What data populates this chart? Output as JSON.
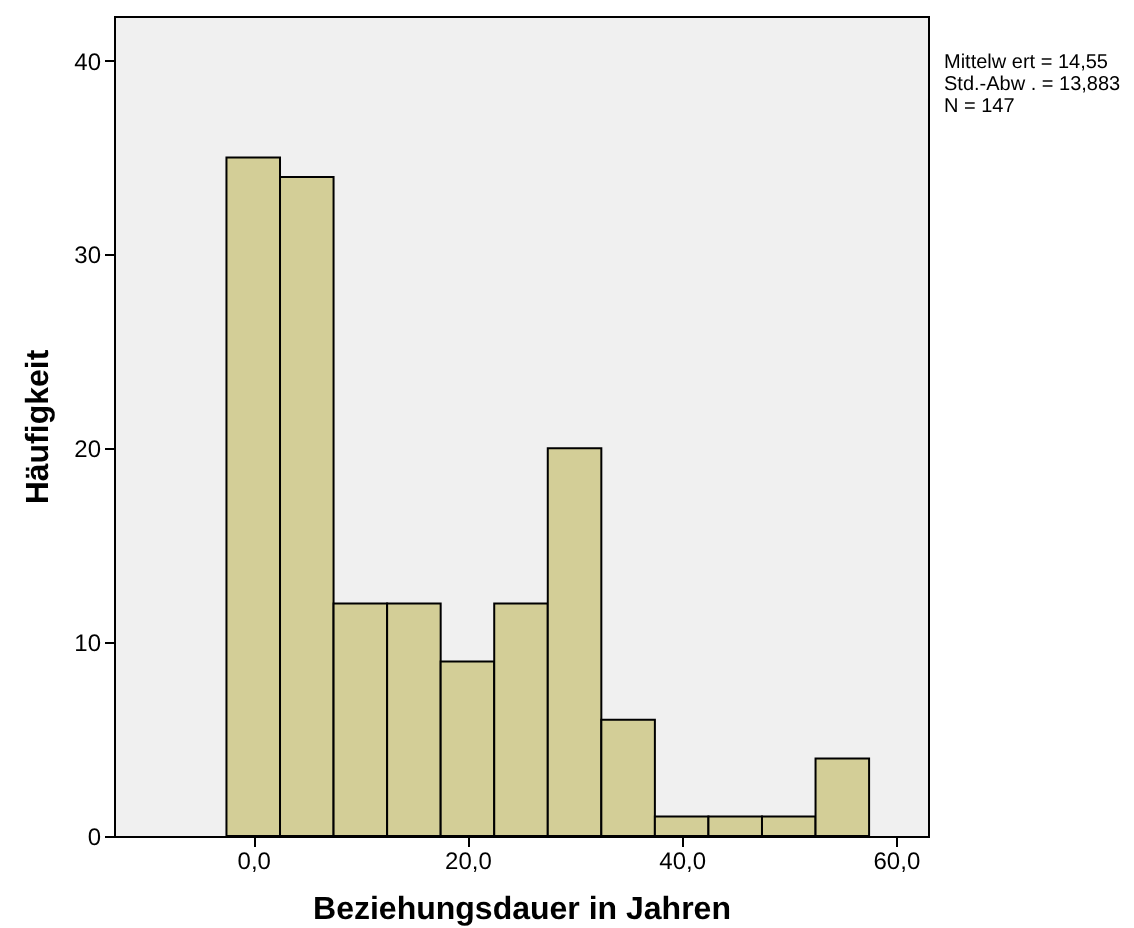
{
  "chart_data": {
    "type": "histogram",
    "xlabel": "Beziehungsdauer in Jahren",
    "ylabel": "Häufigkeit",
    "bins": [
      -2.5,
      2.5,
      7.5,
      12.5,
      17.5,
      22.5,
      27.5,
      32.5,
      37.5,
      42.5,
      47.5,
      52.5,
      57.5
    ],
    "values": [
      35,
      34,
      12,
      12,
      9,
      12,
      20,
      6,
      1,
      1,
      1,
      4
    ],
    "color": "#d3ce97",
    "xlim": [
      -13,
      63
    ],
    "xticks": [
      {
        "value": 0,
        "label": "0,0"
      },
      {
        "value": 20,
        "label": "20,0"
      },
      {
        "value": 40,
        "label": "40,0"
      },
      {
        "value": 60,
        "label": "60,0"
      }
    ],
    "ylim": [
      0,
      42.3
    ],
    "yticks": [
      0,
      10,
      20,
      30,
      40
    ],
    "grid": false,
    "annotations": [
      "Mittelw ert = 14,55",
      "Std.-Abw . = 13,883",
      "N = 147"
    ]
  }
}
